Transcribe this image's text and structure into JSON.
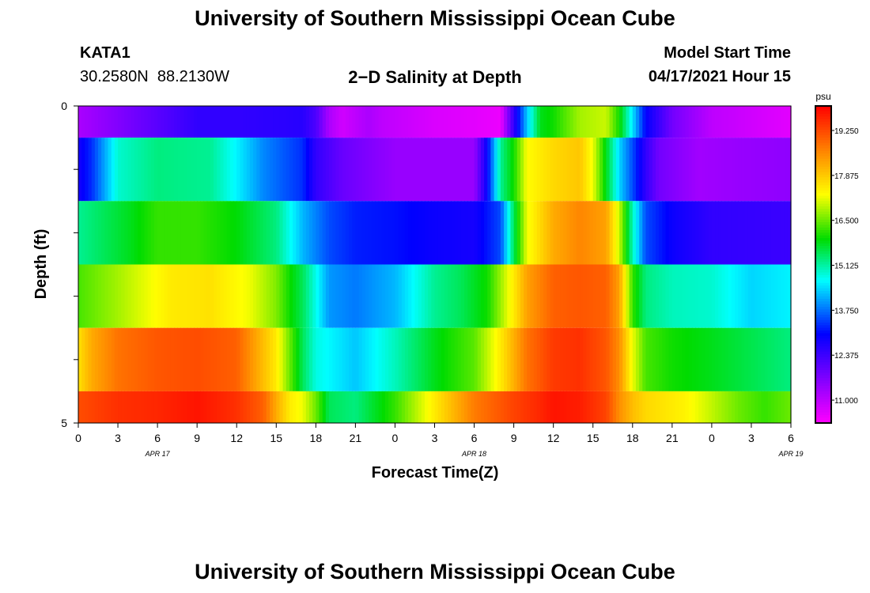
{
  "title": "University of Southern Mississippi Ocean Cube",
  "footer_title": "University of Southern Mississippi Ocean Cube",
  "station": {
    "name": "KATA1",
    "coords": "30.2580N  88.2130W"
  },
  "plot_title": "2−D Salinity at Depth",
  "model": {
    "label": "Model Start Time",
    "value": "04/17/2021 Hour 15"
  },
  "chart_data": {
    "type": "heatmap",
    "xlabel": "Forecast Time(Z)",
    "ylabel": "Depth (ft)",
    "x_hours": [
      0,
      1,
      2,
      3,
      4,
      5,
      6,
      7,
      8,
      9,
      10,
      11,
      12,
      13,
      14,
      15,
      16,
      17,
      18,
      19,
      20,
      21,
      22,
      23,
      24,
      25,
      26,
      27,
      28,
      29,
      30,
      31,
      32,
      33,
      34,
      35,
      36,
      37,
      38,
      39,
      40,
      41,
      42,
      43,
      44,
      45,
      46,
      47,
      48,
      49,
      50,
      51,
      52,
      53,
      54
    ],
    "x_tick_labels": [
      "0",
      "3",
      "6",
      "9",
      "12",
      "15",
      "18",
      "21",
      "0",
      "3",
      "6",
      "9",
      "12",
      "15",
      "18",
      "21",
      "0",
      "3",
      "6"
    ],
    "date_labels": [
      "APR 17",
      "APR 18",
      "APR 19"
    ],
    "y_tick_labels": [
      "0",
      "5"
    ],
    "ylim": [
      0,
      5
    ],
    "depth_rows": [
      0.0,
      1.0,
      2.0,
      3.0,
      4.0,
      5.0
    ],
    "colorbar": {
      "unit": "psu",
      "min": 10.3,
      "max": 20.0,
      "tick_labels": [
        "11.000",
        "12.375",
        "13.750",
        "15.125",
        "16.500",
        "17.875",
        "19.250"
      ],
      "tick_values": [
        11.0,
        12.375,
        13.75,
        15.125,
        16.5,
        17.875,
        19.25
      ]
    },
    "salinity_psu_anchors": [
      {
        "depth_ft": 0,
        "x": [
          0,
          9,
          12,
          17,
          18,
          19,
          20,
          21,
          22,
          23,
          27,
          30,
          32,
          33,
          34,
          35,
          36,
          38,
          40,
          41,
          42,
          43,
          45,
          48,
          54
        ],
        "v": [
          11.2,
          12.5,
          12.5,
          12.6,
          12.2,
          11.2,
          10.8,
          11.0,
          11.2,
          11.0,
          10.7,
          10.6,
          10.5,
          12.5,
          14.3,
          15.8,
          16.0,
          16.8,
          17.0,
          16.0,
          14.5,
          13.0,
          11.8,
          11.0,
          10.6
        ]
      },
      {
        "depth_ft": 1,
        "x": [
          0,
          1,
          3,
          6,
          10,
          12,
          14,
          17,
          18,
          20,
          24,
          27,
          30,
          31,
          32,
          33,
          34,
          36,
          38,
          39,
          40,
          41,
          42,
          43,
          44,
          47,
          50,
          54
        ],
        "v": [
          12.8,
          13.3,
          14.9,
          15.3,
          15.2,
          14.6,
          13.9,
          13.3,
          12.5,
          11.9,
          11.4,
          11.4,
          11.4,
          13.0,
          15.2,
          16.0,
          17.3,
          17.7,
          17.9,
          17.2,
          15.8,
          14.4,
          13.5,
          12.5,
          11.8,
          11.3,
          11.4,
          11.5
        ]
      },
      {
        "depth_ft": 2,
        "x": [
          0,
          2,
          4,
          6,
          9,
          12,
          15,
          17,
          19,
          21,
          24,
          27,
          30,
          32,
          33,
          34,
          36,
          38,
          40,
          41,
          42,
          43,
          45,
          48,
          54
        ],
        "v": [
          15.2,
          15.5,
          15.8,
          16.2,
          16.2,
          15.9,
          15.3,
          14.2,
          13.5,
          13.2,
          13.1,
          12.9,
          12.8,
          13.5,
          15.5,
          17.2,
          18.2,
          18.6,
          18.3,
          17.0,
          15.0,
          13.5,
          12.9,
          12.5,
          12.4
        ]
      },
      {
        "depth_ft": 3,
        "x": [
          0,
          3,
          7,
          10,
          13,
          15,
          16,
          17,
          19,
          21,
          24,
          27,
          29,
          31,
          33,
          34,
          36,
          38,
          40,
          41,
          42,
          43,
          45,
          48,
          51,
          54
        ],
        "v": [
          16.3,
          16.8,
          17.5,
          17.6,
          17.2,
          16.6,
          16.0,
          15.5,
          14.0,
          13.8,
          14.2,
          15.2,
          15.5,
          16.0,
          17.5,
          18.3,
          19.0,
          19.1,
          19.0,
          18.3,
          16.2,
          15.3,
          15.0,
          14.9,
          14.4,
          14.6
        ]
      },
      {
        "depth_ft": 4,
        "x": [
          0,
          1,
          3,
          6,
          9,
          12,
          13,
          14,
          15,
          16,
          17,
          18,
          21,
          24,
          27,
          30,
          32,
          34,
          36,
          38,
          40,
          41,
          42,
          43,
          45,
          48,
          54
        ],
        "v": [
          17.6,
          18.2,
          18.8,
          19.1,
          19.2,
          19.0,
          18.5,
          18.0,
          17.5,
          16.5,
          15.5,
          14.8,
          14.3,
          15.0,
          15.8,
          16.4,
          17.5,
          18.8,
          19.4,
          19.5,
          19.1,
          18.5,
          17.2,
          16.3,
          16.0,
          15.8,
          15.3
        ]
      },
      {
        "depth_ft": 5,
        "x": [
          0,
          3,
          6,
          9,
          12,
          14,
          15,
          16,
          17,
          18,
          19,
          21,
          24,
          27,
          30,
          33,
          35,
          36,
          38,
          40,
          41,
          42,
          43,
          46,
          50,
          52,
          54
        ],
        "v": [
          19.2,
          19.5,
          19.6,
          19.8,
          19.5,
          19.0,
          18.2,
          17.5,
          17.2,
          16.5,
          15.5,
          15.3,
          16.2,
          17.5,
          18.7,
          19.3,
          19.6,
          19.8,
          19.7,
          19.3,
          18.5,
          18.0,
          17.7,
          17.4,
          16.5,
          16.2,
          16.5
        ]
      }
    ]
  }
}
